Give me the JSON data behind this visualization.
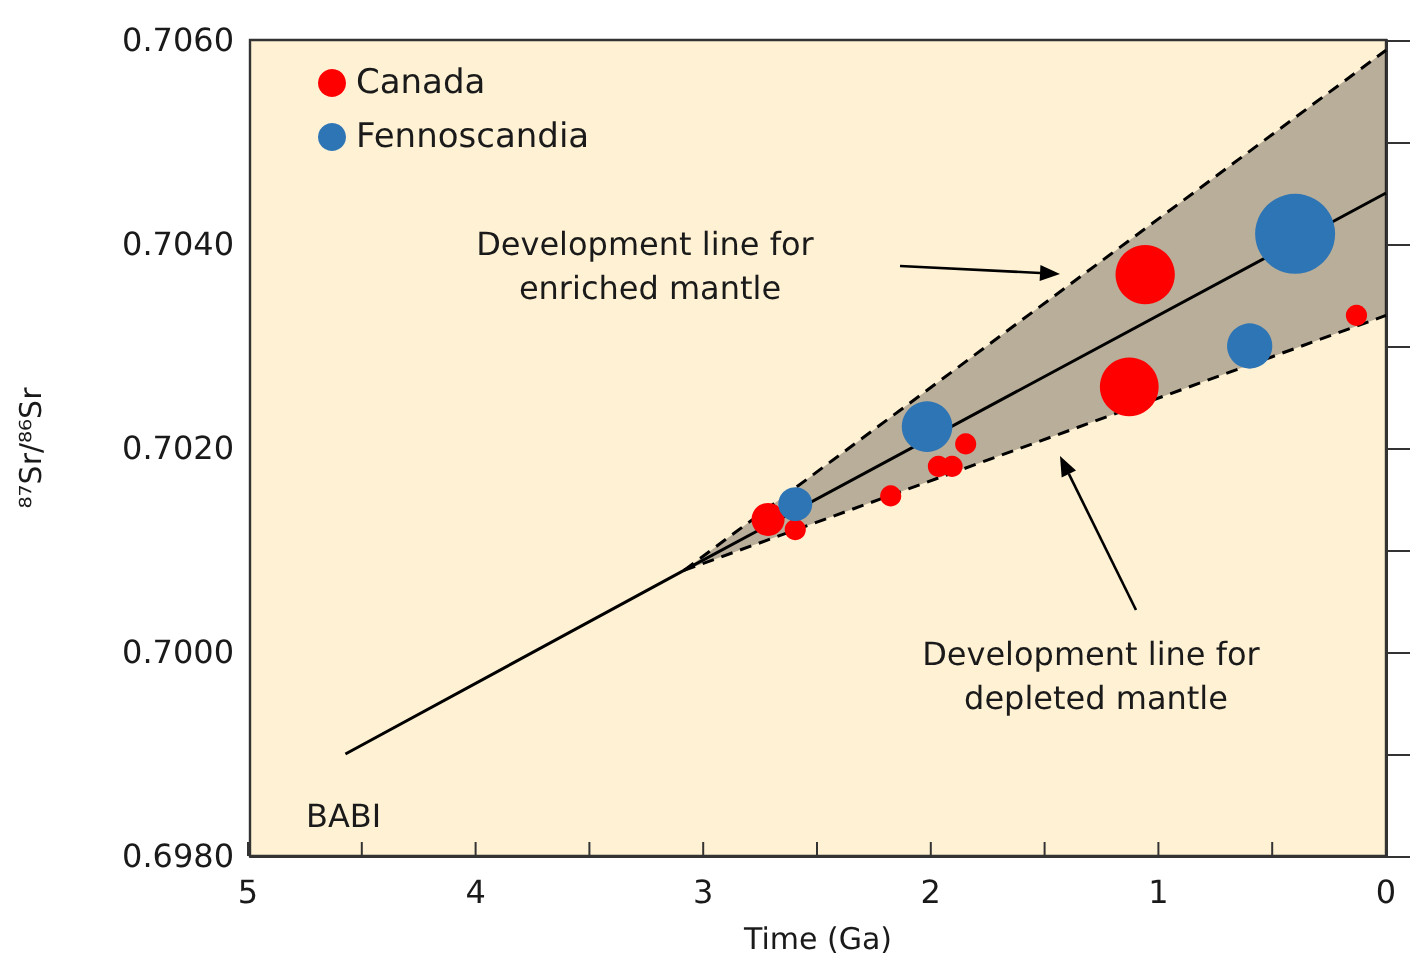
{
  "chart_data": {
    "type": "bubble",
    "xlabel": "Time (Ga)",
    "ylabel": "⁸⁷Sr/⁸⁶Sr",
    "xlim": [
      5,
      0
    ],
    "xticks": [
      5,
      {
        "value": 4.5,
        "label": null
      },
      4,
      {
        "value": 3.5,
        "label": null
      },
      3,
      {
        "value": 2.5,
        "label": null
      },
      2,
      {
        "value": 1.5,
        "label": null
      },
      1,
      {
        "value": 0.5,
        "label": null
      },
      0
    ],
    "ylim": [
      0.698,
      0.706
    ],
    "yticks": [
      {
        "value": 0.698,
        "label": "0.6980"
      },
      {
        "value": 0.699,
        "label": null
      },
      {
        "value": 0.7,
        "label": "0.7000"
      },
      {
        "value": 0.701,
        "label": null
      },
      {
        "value": 0.702,
        "label": "0.7020"
      },
      {
        "value": 0.703,
        "label": null
      },
      {
        "value": 0.704,
        "label": "0.7040"
      },
      {
        "value": 0.705,
        "label": null
      },
      {
        "value": 0.706,
        "label": "0.7060"
      }
    ],
    "grid": false,
    "legend": "top left",
    "series": [
      {
        "name": "Canada",
        "color": "#ff0000",
        "x": [
          2.72,
          2.6,
          2.18,
          1.97,
          1.91,
          1.85,
          1.06,
          1.13,
          0.13
        ],
        "values": [
          0.7013,
          0.7012,
          0.70153,
          0.70182,
          0.70182,
          0.70204,
          0.7037,
          0.7026,
          0.7033
        ],
        "sizes": [
          0.17,
          0.07,
          0.07,
          0.07,
          0.07,
          0.07,
          0.55,
          0.54,
          0.07
        ],
        "marker": "circle"
      },
      {
        "name": "Fennoscandia",
        "color": "#2e75b6",
        "x": [
          2.6,
          2.02,
          0.6,
          0.4
        ],
        "values": [
          0.70145,
          0.70221,
          0.703,
          0.7041
        ],
        "sizes": [
          0.18,
          0.4,
          0.32,
          1
        ],
        "marker": "circle"
      },
      {
        "type": "line",
        "color": "#000000",
        "line_style": "solid",
        "marker": "none",
        "x": [
          4.58,
          3.09,
          0
        ],
        "values": [
          0.699,
          0.7008,
          0.7045
        ],
        "lower": [
          null,
          0.7008,
          0.7033
        ],
        "upper": [
          null,
          0.7008,
          0.7059
        ]
      },
      {
        "type": "line",
        "color": "#000000",
        "line_style": "dashed",
        "marker": "none",
        "x": [
          3.09,
          0
        ],
        "values": [
          0.7008,
          0.7059
        ]
      },
      {
        "type": "line",
        "color": "#000000",
        "line_style": "dashed",
        "marker": "none",
        "x": [
          3.09,
          0
        ],
        "values": [
          0.7008,
          0.7033
        ]
      }
    ],
    "annotations": [
      "Development line for enriched mantle",
      "Development line for depleted mantle",
      {
        "text": "BABI",
        "x": 4.58,
        "y": 0.699
      }
    ]
  }
}
